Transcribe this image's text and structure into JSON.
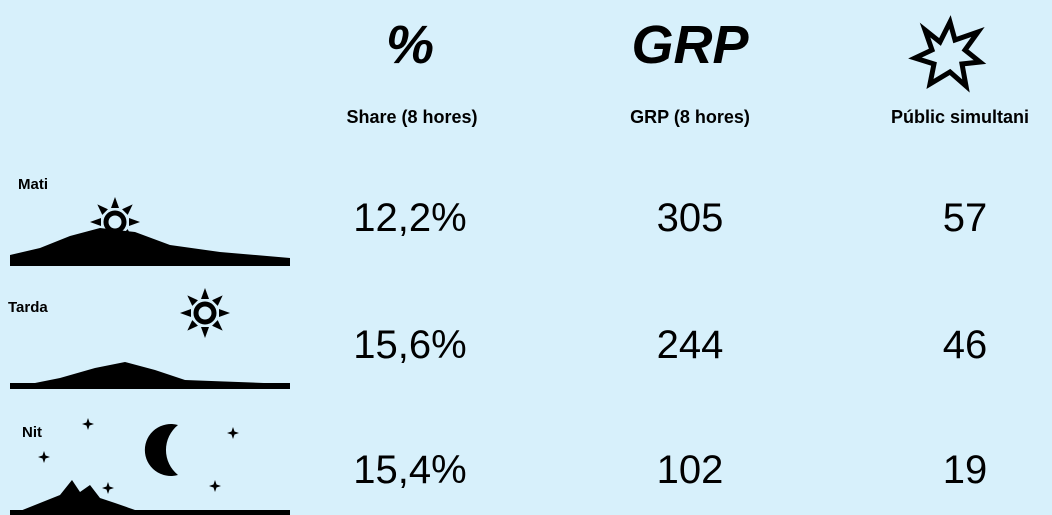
{
  "header": {
    "columns": [
      {
        "symbol": "%",
        "label": "Share (8 hores)"
      },
      {
        "symbol": "GRP",
        "label": "GRP (8 hores)"
      },
      {
        "label": "Públic simultani"
      }
    ]
  },
  "table": {
    "rows": [
      {
        "label": "Mati",
        "values": [
          "12,2%",
          "305",
          "57"
        ]
      },
      {
        "label": "Tarda",
        "values": [
          "15,6%",
          "244",
          "46"
        ]
      },
      {
        "label": "Nit",
        "values": [
          "15,4%",
          "102",
          "19"
        ]
      }
    ]
  }
}
